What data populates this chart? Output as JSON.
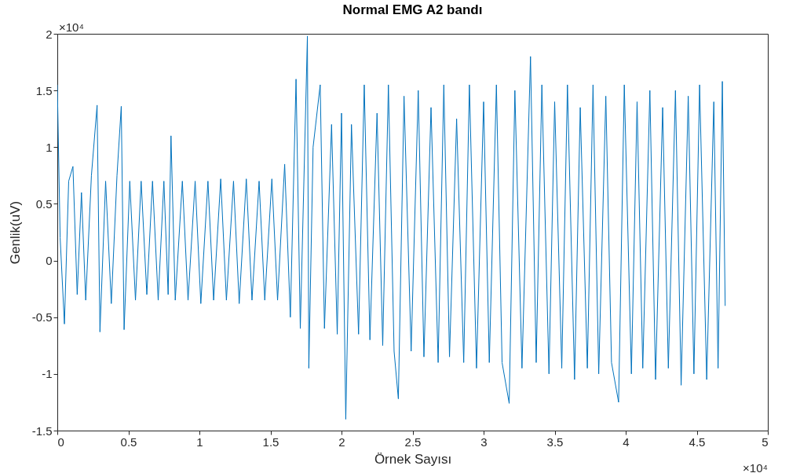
{
  "chart_data": {
    "type": "line",
    "title": "Normal EMG A2 bandı",
    "xlabel": "Örnek Sayısı",
    "ylabel": "Genlik(uV)",
    "color": "#0072bd",
    "x": [
      0,
      0.02,
      0.05,
      0.08,
      0.11,
      0.14,
      0.17,
      0.2,
      0.24,
      0.28,
      0.3,
      0.34,
      0.38,
      0.42,
      0.45,
      0.47,
      0.51,
      0.55,
      0.59,
      0.63,
      0.67,
      0.71,
      0.75,
      0.78,
      0.8,
      0.83,
      0.88,
      0.92,
      0.97,
      1.01,
      1.06,
      1.1,
      1.15,
      1.19,
      1.24,
      1.28,
      1.33,
      1.37,
      1.42,
      1.46,
      1.51,
      1.55,
      1.6,
      1.64,
      1.68,
      1.71,
      1.76,
      1.77,
      1.8,
      1.85,
      1.88,
      1.93,
      1.97,
      2,
      2.03,
      2.07,
      2.12,
      2.16,
      2.2,
      2.25,
      2.29,
      2.33,
      2.37,
      2.4,
      2.44,
      2.49,
      2.54,
      2.58,
      2.63,
      2.68,
      2.72,
      2.76,
      2.81,
      2.86,
      2.9,
      2.95,
      3,
      3.04,
      3.09,
      3.13,
      3.18,
      3.22,
      3.27,
      3.33,
      3.37,
      3.41,
      3.46,
      3.5,
      3.55,
      3.59,
      3.64,
      3.68,
      3.73,
      3.77,
      3.81,
      3.86,
      3.9,
      3.95,
      3.99,
      4.04,
      4.08,
      4.12,
      4.17,
      4.21,
      4.26,
      4.3,
      4.35,
      4.39,
      4.44,
      4.48,
      4.52,
      4.57,
      4.62,
      4.65,
      4.68,
      4.7
    ],
    "values": [
      1.55,
      0.2,
      -0.56,
      0.7,
      0.83,
      -0.3,
      0.6,
      -0.35,
      0.75,
      1.37,
      -0.63,
      0.7,
      -0.38,
      0.75,
      1.36,
      -0.61,
      0.7,
      -0.35,
      0.7,
      -0.3,
      0.7,
      -0.35,
      0.7,
      -0.3,
      1.1,
      -0.35,
      0.7,
      -0.35,
      0.7,
      -0.38,
      0.7,
      -0.35,
      0.72,
      -0.35,
      0.7,
      -0.38,
      0.72,
      -0.35,
      0.7,
      -0.35,
      0.72,
      -0.35,
      0.85,
      -0.5,
      1.6,
      -0.6,
      1.98,
      -0.95,
      1,
      1.55,
      -0.6,
      1.2,
      -0.65,
      1.3,
      -1.4,
      1.2,
      -0.65,
      1.55,
      -0.7,
      1.3,
      -0.75,
      1.55,
      -0.8,
      -1.22,
      1.45,
      -0.8,
      1.5,
      -0.85,
      1.35,
      -0.9,
      1.55,
      -0.85,
      1.25,
      -0.9,
      1.55,
      -0.95,
      1.4,
      -0.9,
      1.55,
      -0.9,
      -1.26,
      1.5,
      -0.95,
      1.8,
      -0.9,
      1.55,
      -1,
      1.4,
      -0.95,
      1.55,
      -1.05,
      1.35,
      -0.95,
      1.55,
      -1,
      1.45,
      -0.9,
      -1.25,
      1.55,
      -1,
      1.4,
      -0.95,
      1.5,
      -1.05,
      1.35,
      -0.95,
      1.5,
      -1.1,
      1.45,
      -1,
      1.55,
      -1.05,
      1.4,
      -0.95,
      1.58,
      -0.4
    ],
    "xlim": [
      0,
      5
    ],
    "ylim": [
      -1.5,
      2
    ],
    "xticks": [
      0,
      0.5,
      1,
      1.5,
      2,
      2.5,
      3,
      3.5,
      4,
      4.5,
      5
    ],
    "yticks": [
      -1.5,
      -1,
      -0.5,
      0,
      0.5,
      1,
      1.5,
      2
    ],
    "annotations": [
      "×10⁴",
      "×10⁴"
    ]
  }
}
